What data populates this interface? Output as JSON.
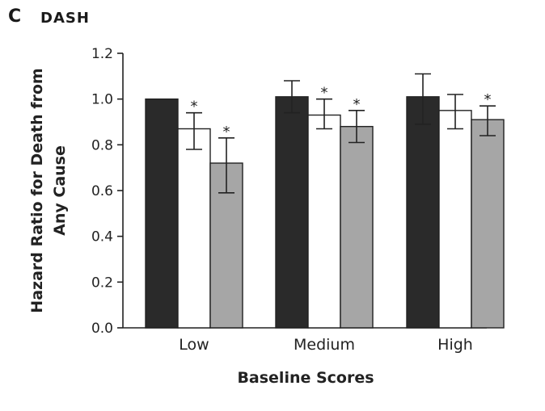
{
  "panel": {
    "label": "C",
    "title": "DASH"
  },
  "chart_data": {
    "type": "bar",
    "categories": [
      "Low",
      "Medium",
      "High"
    ],
    "series": [
      {
        "color": "#2a2a2a",
        "values": [
          1.0,
          1.01,
          1.01
        ],
        "err_low": [
          1.0,
          0.94,
          0.89
        ],
        "err_high": [
          1.0,
          1.08,
          1.11
        ],
        "significant": [
          false,
          false,
          false
        ]
      },
      {
        "color": "#ffffff",
        "values": [
          0.87,
          0.93,
          0.95
        ],
        "err_low": [
          0.78,
          0.87,
          0.87
        ],
        "err_high": [
          0.94,
          1.0,
          1.02
        ],
        "significant": [
          true,
          true,
          false
        ]
      },
      {
        "color": "#a6a6a6",
        "values": [
          0.72,
          0.88,
          0.91
        ],
        "err_low": [
          0.59,
          0.81,
          0.84
        ],
        "err_high": [
          0.83,
          0.95,
          0.97
        ],
        "significant": [
          true,
          true,
          true
        ]
      }
    ],
    "significance_marker": "*",
    "xlabel": "Baseline Scores",
    "ylabel_lines": [
      "Hazard Ratio for Death from",
      "Any Cause"
    ],
    "ylim": [
      0.0,
      1.2
    ],
    "yticks": [
      "0.0",
      "0.2",
      "0.4",
      "0.6",
      "0.8",
      "1.0",
      "1.2"
    ],
    "grid": false
  }
}
